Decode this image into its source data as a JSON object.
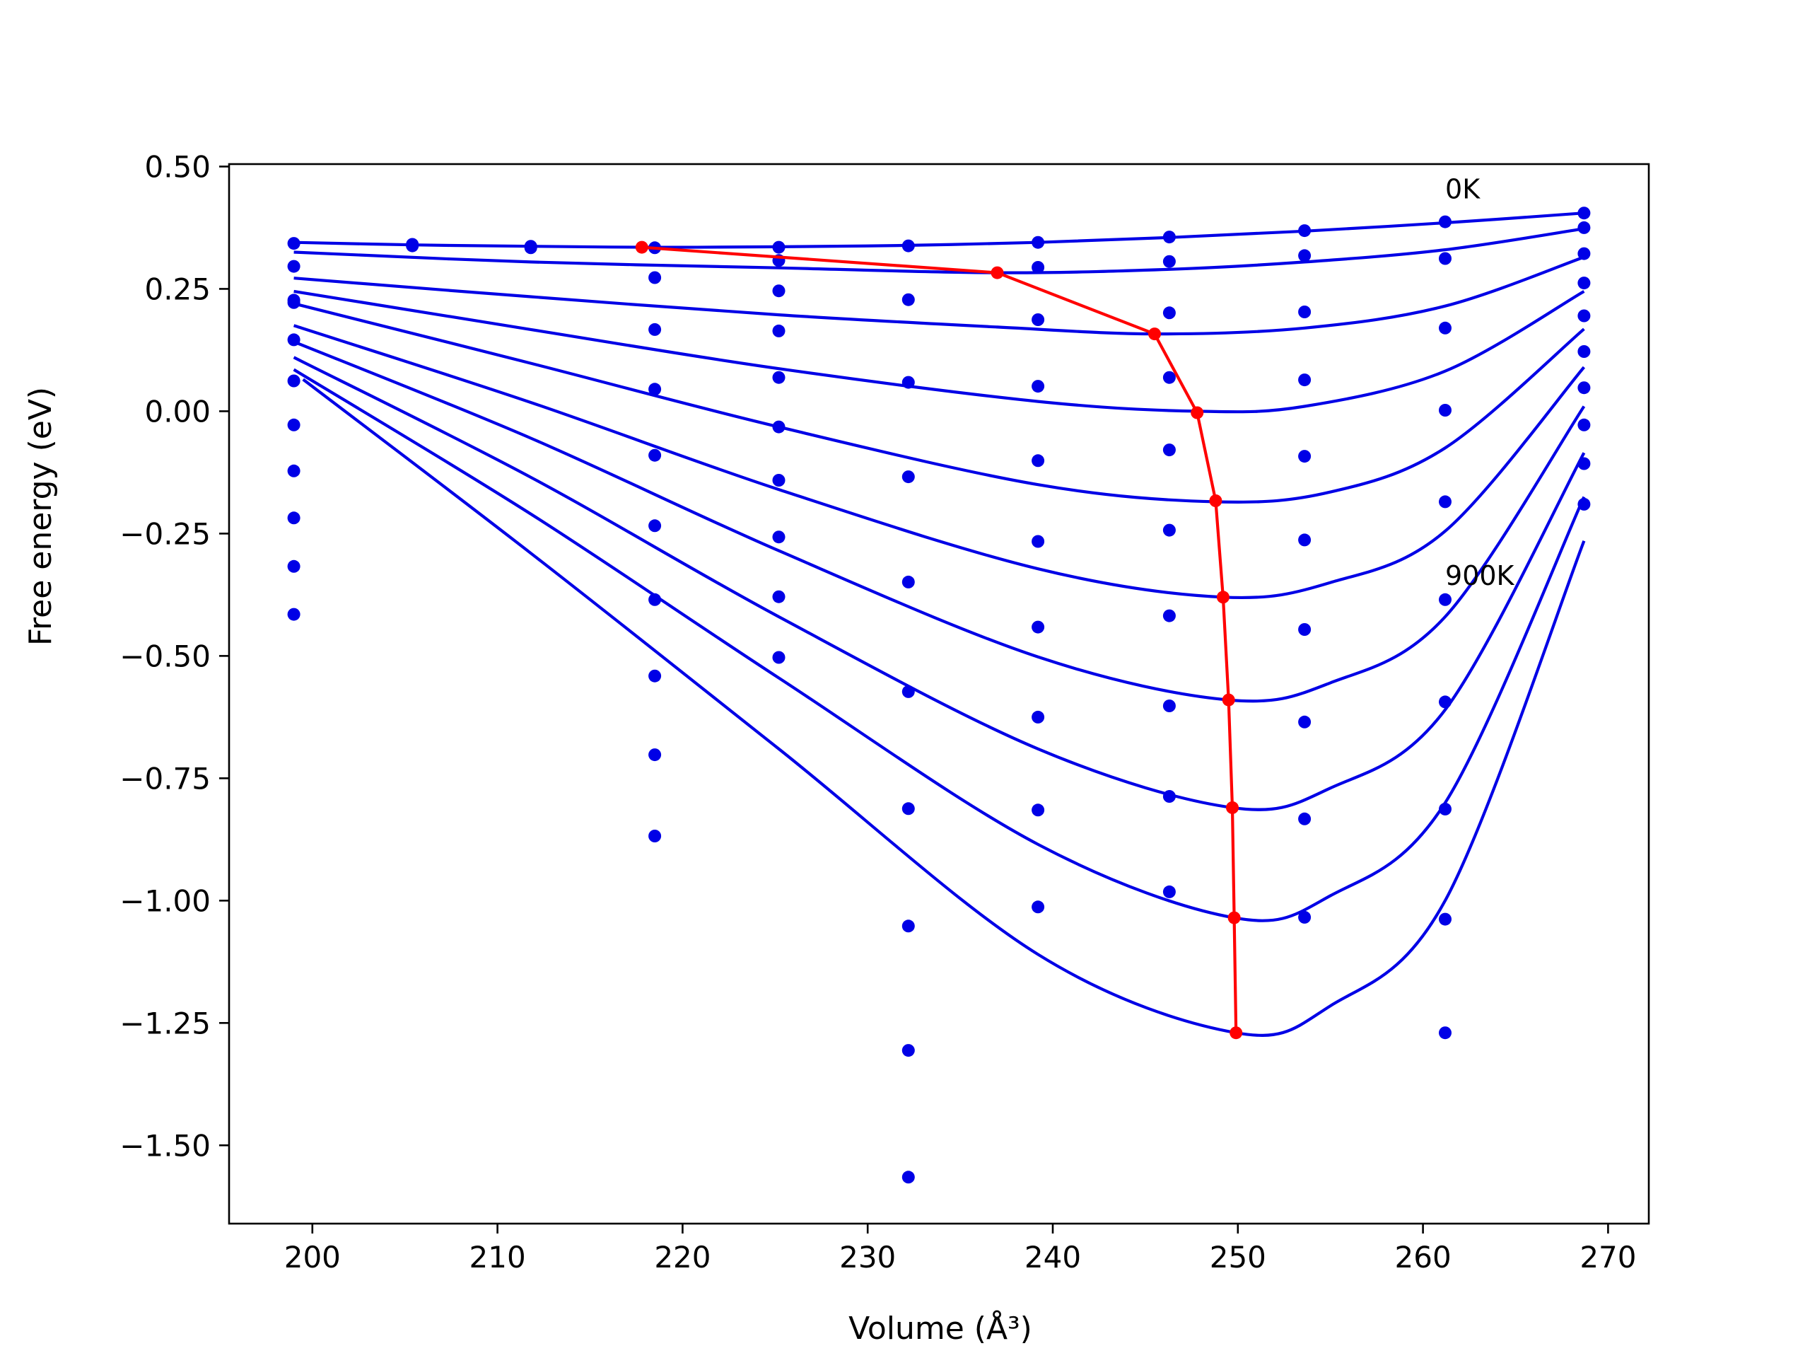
{
  "colors": {
    "curves": "#0000e6",
    "points": "#0000e6",
    "minima_line": "#ff0000",
    "frame": "#000000",
    "background": "#ffffff"
  },
  "chart_data": {
    "type": "line",
    "xlabel": "Volume (Å³)",
    "ylabel": "Free energy (eV)",
    "xlim": [
      195.5,
      272.2
    ],
    "ylim": [
      -1.66,
      0.505
    ],
    "xticks": [
      {
        "value": 200,
        "label": "200"
      },
      {
        "value": 210,
        "label": "210"
      },
      {
        "value": 220,
        "label": "220"
      },
      {
        "value": 230,
        "label": "230"
      },
      {
        "value": 240,
        "label": "240"
      },
      {
        "value": 250,
        "label": "250"
      },
      {
        "value": 260,
        "label": "260"
      },
      {
        "value": 270,
        "label": "270"
      }
    ],
    "yticks": [
      {
        "value": 0.5,
        "label": "0.50"
      },
      {
        "value": 0.25,
        "label": "0.25"
      },
      {
        "value": 0.0,
        "label": "0.00"
      },
      {
        "value": -0.25,
        "label": "−0.25"
      },
      {
        "value": -0.5,
        "label": "−0.50"
      },
      {
        "value": -0.75,
        "label": "−0.75"
      },
      {
        "value": -1.0,
        "label": "−1.00"
      },
      {
        "value": -1.25,
        "label": "−1.25"
      },
      {
        "value": -1.5,
        "label": "−1.50"
      }
    ],
    "grid": false,
    "annotations": [
      {
        "text": "0K",
        "x": 261.2,
        "y": 0.455
      },
      {
        "text": "900K",
        "x": 261.2,
        "y": -0.335
      }
    ],
    "fitted_curves": [
      {
        "x": [
          199,
          205.4,
          211.8,
          218.5,
          225.2,
          232.2,
          239.2,
          246.3,
          253.6,
          261.2,
          268.7
        ],
        "y": [
          0.345,
          0.34,
          0.337,
          0.335,
          0.336,
          0.339,
          0.345,
          0.355,
          0.368,
          0.385,
          0.405
        ]
      },
      {
        "x": [
          199,
          211.8,
          225.2,
          237.0,
          246.3,
          253.6,
          261.2,
          268.7
        ],
        "y": [
          0.325,
          0.305,
          0.293,
          0.283,
          0.29,
          0.305,
          0.33,
          0.373
        ]
      },
      {
        "x": [
          199,
          211.8,
          225.2,
          237.0,
          245.5,
          253.6,
          261.2,
          268.7
        ],
        "y": [
          0.272,
          0.234,
          0.197,
          0.172,
          0.158,
          0.17,
          0.215,
          0.315
        ]
      },
      {
        "x": [
          199,
          211.8,
          225.2,
          239.2,
          247.8,
          253.6,
          261.2,
          268.7
        ],
        "y": [
          0.245,
          0.167,
          0.087,
          0.02,
          0.0,
          0.01,
          0.082,
          0.245
        ]
      },
      {
        "x": [
          199,
          211.8,
          225.2,
          239.2,
          248.8,
          255.0,
          261.2,
          268.7
        ],
        "y": [
          0.22,
          0.098,
          -0.032,
          -0.15,
          -0.185,
          -0.165,
          -0.075,
          0.168
        ]
      },
      {
        "x": [
          199,
          211.8,
          225.2,
          239.2,
          249.2,
          255.0,
          261.2,
          268.7
        ],
        "y": [
          0.175,
          0.018,
          -0.16,
          -0.322,
          -0.38,
          -0.35,
          -0.245,
          0.09
        ]
      },
      {
        "x": [
          199,
          211.8,
          225.2,
          239.2,
          249.5,
          255.0,
          261.2,
          268.7
        ],
        "y": [
          0.142,
          -0.055,
          -0.285,
          -0.502,
          -0.59,
          -0.555,
          -0.42,
          0.01
        ]
      },
      {
        "x": [
          199,
          211.8,
          225.2,
          239.2,
          249.7,
          255.0,
          261.2,
          268.7
        ],
        "y": [
          0.11,
          -0.135,
          -0.42,
          -0.69,
          -0.81,
          -0.77,
          -0.61,
          -0.085
        ]
      },
      {
        "x": [
          199,
          211.8,
          225.2,
          239.2,
          249.8,
          255.0,
          261.2,
          268.7
        ],
        "y": [
          0.085,
          -0.21,
          -0.545,
          -0.885,
          -1.035,
          -0.99,
          -0.8,
          -0.175
        ]
      },
      {
        "x": [
          199.5,
          211.8,
          225.2,
          239.2,
          249.9,
          255.0,
          261.2,
          268.7
        ],
        "y": [
          0.065,
          -0.29,
          -0.69,
          -1.11,
          -1.27,
          -1.215,
          -1.0,
          -0.265
        ]
      }
    ],
    "data_points": [
      {
        "x": 199.0,
        "y": [
          0.343,
          0.296,
          0.227,
          0.222,
          0.146,
          0.062,
          -0.028,
          -0.122,
          -0.218,
          -0.317,
          -0.415
        ]
      },
      {
        "x": 205.4,
        "y": [
          0.341,
          0.338
        ]
      },
      {
        "x": 211.8,
        "y": [
          0.337,
          0.334
        ]
      },
      {
        "x": 218.5,
        "y": [
          0.334,
          0.273,
          0.167,
          0.045,
          -0.09,
          -0.234,
          -0.385,
          -0.541,
          -0.702,
          -0.868
        ]
      },
      {
        "x": 225.2,
        "y": [
          0.335,
          0.308,
          0.246,
          0.164,
          0.069,
          -0.032,
          -0.141,
          -0.257,
          -0.379,
          -0.503
        ]
      },
      {
        "x": 232.2,
        "y": [
          0.338,
          0.228,
          0.059,
          -0.134,
          -0.349,
          -0.573,
          -0.812,
          -1.052,
          -1.306,
          -1.565
        ]
      },
      {
        "x": 239.2,
        "y": [
          0.345,
          0.294,
          0.187,
          0.051,
          -0.101,
          -0.266,
          -0.441,
          -0.625,
          -0.815,
          -1.013
        ]
      },
      {
        "x": 246.3,
        "y": [
          0.356,
          0.306,
          0.201,
          0.069,
          -0.079,
          -0.243,
          -0.418,
          -0.602,
          -0.787,
          -0.982
        ]
      },
      {
        "x": 253.6,
        "y": [
          0.369,
          0.318,
          0.203,
          0.064,
          -0.092,
          -0.263,
          -0.446,
          -0.635,
          -0.833,
          -1.034
        ]
      },
      {
        "x": 261.2,
        "y": [
          0.387,
          0.312,
          0.17,
          0.002,
          -0.185,
          -0.385,
          -0.594,
          -0.813,
          -1.038,
          -1.27
        ]
      },
      {
        "x": 268.7,
        "y": [
          0.405,
          0.375,
          0.322,
          0.262,
          0.195,
          0.122,
          0.048,
          -0.028,
          -0.107,
          -0.19
        ]
      }
    ],
    "minima_line": {
      "x": [
        217.8,
        237.0,
        245.5,
        247.8,
        248.8,
        249.2,
        249.5,
        249.7,
        249.8,
        249.9
      ],
      "y": [
        0.335,
        0.283,
        0.158,
        -0.003,
        -0.183,
        -0.38,
        -0.59,
        -0.81,
        -1.035,
        -1.27
      ]
    }
  }
}
